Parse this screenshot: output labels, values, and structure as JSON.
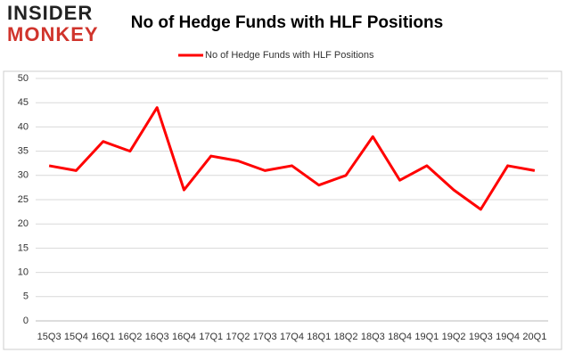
{
  "logo": {
    "line1": "INSIDER",
    "line2": "MONKEY"
  },
  "chart_data": {
    "type": "line",
    "title": "No of Hedge Funds with HLF Positions",
    "categories": [
      "15Q3",
      "15Q4",
      "16Q1",
      "16Q2",
      "16Q3",
      "16Q4",
      "17Q1",
      "17Q2",
      "17Q3",
      "17Q4",
      "18Q1",
      "18Q2",
      "18Q3",
      "18Q4",
      "19Q1",
      "19Q2",
      "19Q3",
      "19Q4",
      "20Q1"
    ],
    "series": [
      {
        "name": "No of Hedge Funds with HLF Positions",
        "color": "#ff0000",
        "values": [
          32,
          31,
          37,
          35,
          44,
          27,
          34,
          33,
          31,
          32,
          28,
          30,
          38,
          29,
          32,
          27,
          23,
          32,
          31
        ]
      }
    ],
    "ylim": [
      0,
      50
    ],
    "yticks": [
      0,
      5,
      10,
      15,
      20,
      25,
      30,
      35,
      40,
      45,
      50
    ],
    "grid": true,
    "legend": "top"
  }
}
